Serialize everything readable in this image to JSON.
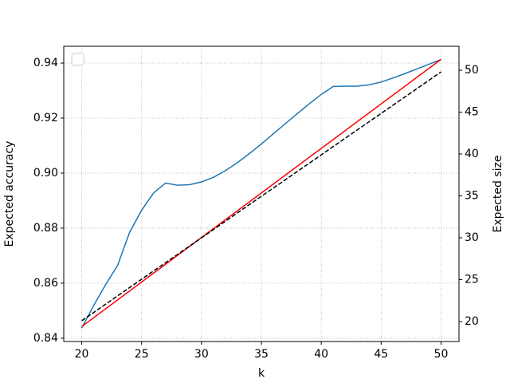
{
  "chart_data": {
    "type": "line",
    "xlabel": "k",
    "ylabel": "Expected accuracy",
    "y2label": "Expected size",
    "xlim": [
      18.5,
      51.5
    ],
    "xticks": [
      20,
      25,
      30,
      35,
      40,
      45,
      50
    ],
    "ylim": [
      0.8388,
      0.9461
    ],
    "yticks": [
      0.84,
      0.86,
      0.88,
      {
        "value": 0.9,
        "label": "0.90"
      },
      0.92,
      0.94
    ],
    "y2lim": [
      17.62,
      52.86
    ],
    "y2ticks": [
      20,
      25,
      30,
      35,
      40,
      45,
      50
    ],
    "grid": true,
    "legend": "upper left",
    "series": [
      {
        "color": "#1f77b4",
        "dash": "solid",
        "axis": "y",
        "x": [
          20,
          21,
          22,
          23,
          24,
          25,
          26,
          27,
          28,
          29,
          30,
          31,
          32,
          33,
          34,
          35,
          36,
          37,
          38,
          39,
          40,
          41,
          42,
          43,
          44,
          45,
          46,
          47,
          48,
          49,
          50
        ],
        "values": [
          0.8437,
          0.8519,
          0.8595,
          0.8665,
          0.8785,
          0.8865,
          0.8928,
          0.8964,
          0.8956,
          0.8958,
          0.8968,
          0.8985,
          0.9009,
          0.9038,
          0.9071,
          0.9106,
          0.9143,
          0.918,
          0.9216,
          0.9252,
          0.9286,
          0.9315,
          0.9316,
          0.9316,
          0.9321,
          0.9331,
          0.9346,
          0.9362,
          0.9379,
          0.9396,
          0.9413
        ]
      },
      {
        "color": "#ff0000",
        "dash": "solid",
        "axis": "y2",
        "x": [
          20,
          50
        ],
        "values": [
          19.4,
          51.3
        ]
      },
      {
        "color": "#000000",
        "dash": "dashed",
        "axis": "y2",
        "x": [
          20,
          50
        ],
        "values": [
          20.1,
          49.8
        ]
      }
    ]
  }
}
